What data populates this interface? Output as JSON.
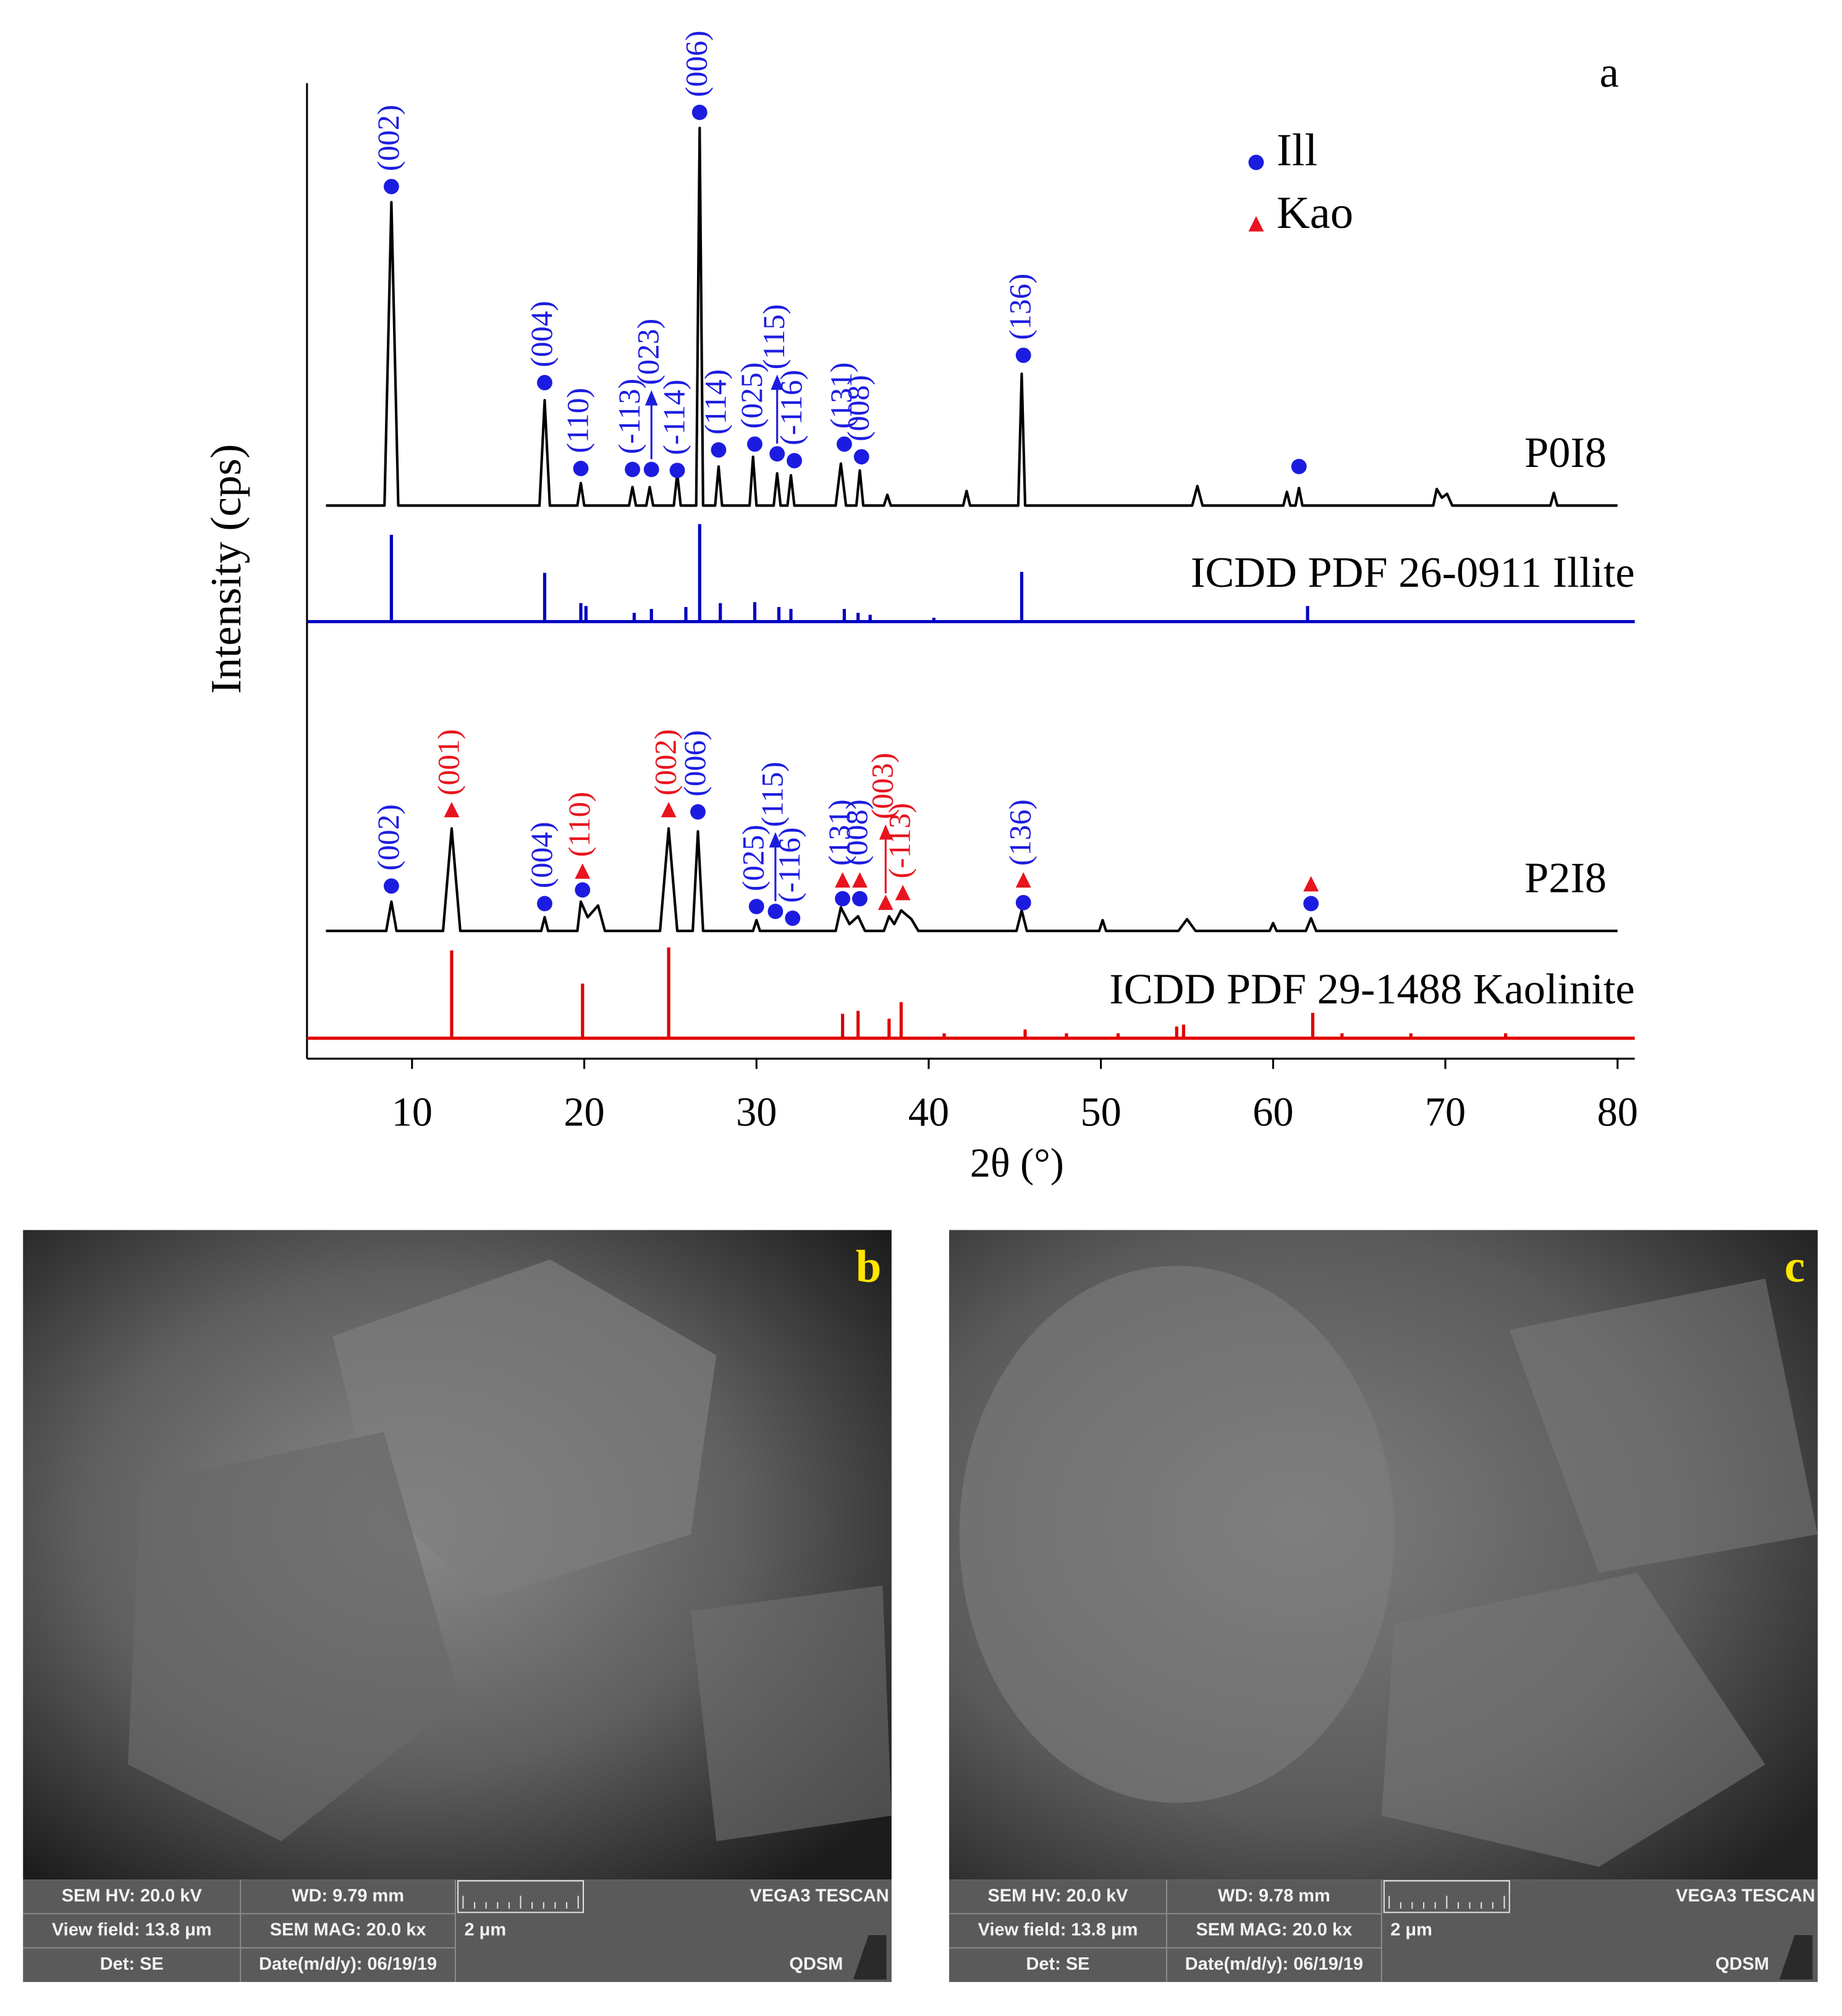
{
  "chart_data": {
    "type": "line",
    "panel_label": "a",
    "xlabel": "2θ (°)",
    "ylabel": "Intensity (cps)",
    "xlim": [
      3.9,
      81
    ],
    "xticks": [
      10,
      20,
      30,
      40,
      50,
      60,
      70,
      80
    ],
    "ylim": [
      0,
      100
    ],
    "phases": [
      {
        "name": "Ill",
        "color": "#1c1ce0",
        "marker": "circle"
      },
      {
        "name": "Kao",
        "color": "#e8141e",
        "marker": "triangle"
      }
    ],
    "series": [
      {
        "name": "P0I8",
        "style": "line",
        "color": "#000000",
        "x": [
          5,
          8.4,
          8.8,
          9.2,
          17.4,
          17.7,
          18.0,
          19.6,
          19.8,
          20.0,
          22.6,
          22.8,
          23.0,
          23.6,
          23.8,
          24.0,
          25.2,
          25.4,
          25.6,
          26.5,
          26.7,
          26.9,
          27.6,
          27.8,
          28.0,
          29.6,
          29.8,
          30.0,
          31.0,
          31.2,
          31.4,
          31.8,
          32.0,
          32.2,
          34.6,
          34.9,
          35.2,
          35.8,
          36.0,
          36.2,
          37.4,
          37.6,
          37.8,
          42.0,
          42.2,
          42.4,
          45.2,
          45.4,
          45.6,
          55.3,
          55.6,
          55.9,
          60.6,
          60.8,
          61.0,
          61.3,
          61.5,
          61.7,
          69.3,
          69.5,
          69.8,
          70.1,
          70.4,
          76.1,
          76.3,
          76.5,
          80
        ],
        "values": [
          56.7,
          56.7,
          87.8,
          56.7,
          56.7,
          67.5,
          56.7,
          56.7,
          59.0,
          56.7,
          56.7,
          58.6,
          56.7,
          56.7,
          58.6,
          56.7,
          56.7,
          60.0,
          56.7,
          56.7,
          95.4,
          56.7,
          56.7,
          60.7,
          56.7,
          56.7,
          61.7,
          56.7,
          56.7,
          60.0,
          56.7,
          56.7,
          59.8,
          56.7,
          56.7,
          61.0,
          56.7,
          56.7,
          60.3,
          56.7,
          56.7,
          57.8,
          56.7,
          56.7,
          58.2,
          56.7,
          56.7,
          70.2,
          56.7,
          56.7,
          58.7,
          56.7,
          56.7,
          58.1,
          56.7,
          56.7,
          58.5,
          56.7,
          56.7,
          58.4,
          57.5,
          57.9,
          56.7,
          56.7,
          58.0,
          56.7,
          56.7
        ]
      },
      {
        "name": "ICDD PDF 26-0911 Illite",
        "style": "sticks",
        "color": "#0000c0",
        "baseline": 44.8,
        "x": [
          8.8,
          17.7,
          19.8,
          20.1,
          22.9,
          23.9,
          25.9,
          26.7,
          27.9,
          29.9,
          31.3,
          32.0,
          35.1,
          35.9,
          36.6,
          40.3,
          45.4,
          62.0
        ],
        "values": [
          53.7,
          49.8,
          46.7,
          46.4,
          45.7,
          46.1,
          46.3,
          54.8,
          46.7,
          46.8,
          46.3,
          46.1,
          46.1,
          45.7,
          45.5,
          45.2,
          49.9,
          46.4
        ]
      },
      {
        "name": "P2I8",
        "style": "line",
        "color": "#000000",
        "x": [
          5,
          8.5,
          8.8,
          9.1,
          11.8,
          12.3,
          12.8,
          17.5,
          17.7,
          17.9,
          19.6,
          19.8,
          20.2,
          20.8,
          21.2,
          24.4,
          24.9,
          25.4,
          26.3,
          26.6,
          26.9,
          29.8,
          30.0,
          30.2,
          34.6,
          34.9,
          35.4,
          35.9,
          36.3,
          37.4,
          37.7,
          38.0,
          38.4,
          39.0,
          39.4,
          45.1,
          45.4,
          45.7,
          49.9,
          50.1,
          50.3,
          54.5,
          55.0,
          55.5,
          59.8,
          60.0,
          60.2,
          61.9,
          62.2,
          62.5,
          80
        ],
        "values": [
          13.1,
          13.1,
          16.1,
          13.1,
          13.1,
          23.6,
          13.1,
          13.1,
          14.5,
          13.1,
          13.1,
          16.1,
          14.5,
          15.7,
          13.1,
          13.1,
          23.6,
          13.1,
          13.1,
          23.3,
          13.1,
          13.1,
          14.2,
          13.1,
          13.1,
          15.5,
          13.8,
          14.6,
          13.1,
          13.1,
          14.6,
          13.8,
          15.2,
          14.3,
          13.1,
          13.1,
          15.2,
          13.1,
          13.1,
          14.2,
          13.1,
          13.1,
          14.3,
          13.1,
          13.1,
          13.9,
          13.1,
          13.1,
          14.4,
          13.1,
          13.1
        ]
      },
      {
        "name": "ICDD PDF 29-1488 Kaolinite",
        "style": "sticks",
        "color": "#e00000",
        "baseline": 2.1,
        "x": [
          12.3,
          19.9,
          24.9,
          35.0,
          35.9,
          37.7,
          38.4,
          40.9,
          45.6,
          48.0,
          51.0,
          54.4,
          54.8,
          62.3,
          64.0,
          68.0,
          73.5
        ],
        "values": [
          11.1,
          7.7,
          11.4,
          4.6,
          4.9,
          4.1,
          5.8,
          2.6,
          3.0,
          2.6,
          2.6,
          3.3,
          3.5,
          4.7,
          2.6,
          2.6,
          2.6
        ]
      }
    ],
    "peak_markers": [
      {
        "x": 8.8,
        "y": 89.4,
        "phase": "Ill",
        "label": "(002)"
      },
      {
        "x": 17.7,
        "y": 69.3,
        "phase": "Ill",
        "label": "(004)"
      },
      {
        "x": 19.8,
        "y": 60.5,
        "phase": "Ill",
        "label": "(110)"
      },
      {
        "x": 22.8,
        "y": 60.4,
        "phase": "Ill",
        "label": "(-113)"
      },
      {
        "x": 23.9,
        "y": 60.4,
        "phase": "Ill",
        "label": "(023)",
        "arrow": true
      },
      {
        "x": 25.4,
        "y": 60.3,
        "phase": "Ill",
        "label": "(-114)"
      },
      {
        "x": 26.7,
        "y": 97.0,
        "phase": "Ill",
        "label": "(006)"
      },
      {
        "x": 27.8,
        "y": 62.4,
        "phase": "Ill",
        "label": "(114)"
      },
      {
        "x": 29.9,
        "y": 63.0,
        "phase": "Ill",
        "label": "(025)"
      },
      {
        "x": 31.2,
        "y": 62.0,
        "phase": "Ill",
        "label": "(115)",
        "arrow": true
      },
      {
        "x": 32.2,
        "y": 61.3,
        "phase": "Ill",
        "label": "(-116)"
      },
      {
        "x": 35.1,
        "y": 63.0,
        "phase": "Ill",
        "label": "(131)"
      },
      {
        "x": 36.1,
        "y": 61.7,
        "phase": "Ill",
        "label": "(008)"
      },
      {
        "x": 45.5,
        "y": 72.1,
        "phase": "Ill",
        "label": "(136)"
      },
      {
        "x": 61.5,
        "y": 60.7,
        "phase": "Ill"
      },
      {
        "x": 8.8,
        "y": 17.7,
        "phase": "Ill",
        "label": "(002)"
      },
      {
        "x": 12.3,
        "y": 25.4,
        "phase": "Kao",
        "label": "(001)"
      },
      {
        "x": 17.7,
        "y": 15.9,
        "phase": "Ill",
        "label": "(004)"
      },
      {
        "x": 19.9,
        "y": 19.1,
        "phase": "Kao",
        "label": "(110)"
      },
      {
        "x": 19.9,
        "y": 17.3,
        "phase": "Ill"
      },
      {
        "x": 24.9,
        "y": 25.4,
        "phase": "Kao",
        "label": "(002)"
      },
      {
        "x": 26.6,
        "y": 25.3,
        "phase": "Ill",
        "label": "(006)"
      },
      {
        "x": 30.0,
        "y": 15.6,
        "phase": "Ill",
        "label": "(025)"
      },
      {
        "x": 31.1,
        "y": 15.1,
        "phase": "Ill",
        "label": "(115)",
        "arrow": true
      },
      {
        "x": 32.1,
        "y": 14.4,
        "phase": "Ill",
        "label": "(-116)"
      },
      {
        "x": 35.0,
        "y": 18.2,
        "phase": "Kao",
        "label": "(131)",
        "label_phase": "Ill"
      },
      {
        "x": 35.0,
        "y": 16.4,
        "phase": "Ill"
      },
      {
        "x": 36.0,
        "y": 18.2,
        "phase": "Kao",
        "label": "(008)",
        "label_phase": "Ill"
      },
      {
        "x": 36.0,
        "y": 16.4,
        "phase": "Ill"
      },
      {
        "x": 37.5,
        "y": 15.9,
        "phase": "Kao",
        "label": "(003)",
        "arrow": true
      },
      {
        "x": 38.5,
        "y": 16.9,
        "phase": "Kao",
        "label": "(-113)"
      },
      {
        "x": 45.5,
        "y": 18.2,
        "phase": "Kao",
        "label": "(136)",
        "label_phase": "Ill"
      },
      {
        "x": 45.5,
        "y": 16.0,
        "phase": "Ill"
      },
      {
        "x": 62.2,
        "y": 17.8,
        "phase": "Kao"
      },
      {
        "x": 62.2,
        "y": 15.9,
        "phase": "Ill"
      }
    ]
  },
  "sem_images": [
    {
      "panel_label": "b",
      "hv": "SEM HV: 20.0 kV",
      "wd": "WD: 9.79 mm",
      "vendor": "VEGA3 TESCAN",
      "view_field": "View field: 13.8 μm",
      "mag": "SEM MAG: 20.0 kx",
      "scale": "2 μm",
      "det": "Det: SE",
      "date": "Date(m/d/y): 06/19/19",
      "lab": "QDSM"
    },
    {
      "panel_label": "c",
      "hv": "SEM HV: 20.0 kV",
      "wd": "WD: 9.78 mm",
      "vendor": "VEGA3 TESCAN",
      "view_field": "View field: 13.8 μm",
      "mag": "SEM MAG: 20.0 kx",
      "scale": "2 μm",
      "det": "Det: SE",
      "date": "Date(m/d/y): 06/19/19",
      "lab": "QDSM"
    }
  ]
}
